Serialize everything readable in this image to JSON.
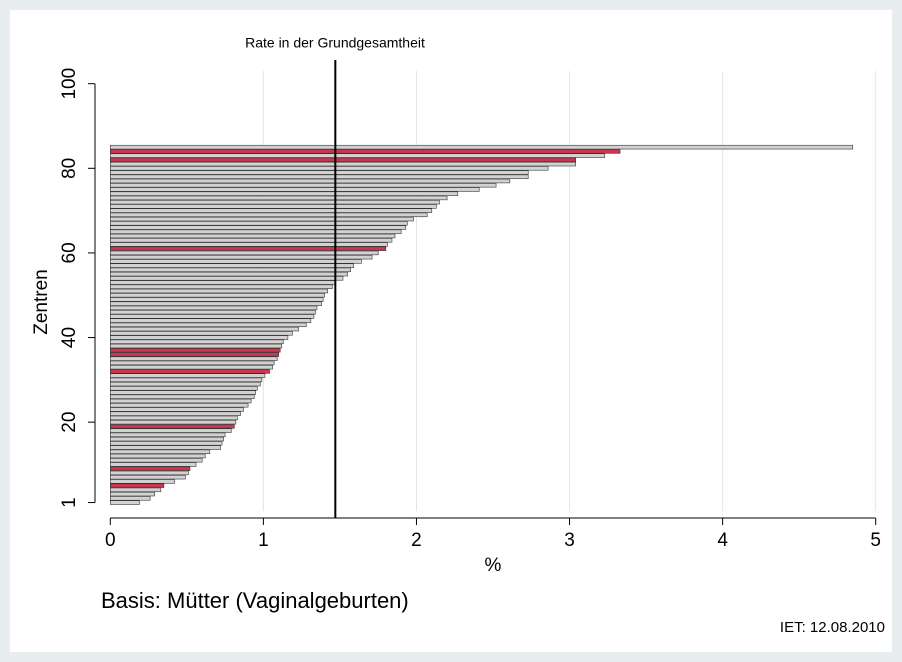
{
  "chart_data": {
    "type": "hbar",
    "reference_line": {
      "value": 1.47,
      "label": "Rate in der Grundgesamtheit"
    },
    "x_label": "%",
    "y_label": "Zentren",
    "note": "Basis: Mütter (Vaginalgeburten)",
    "footer": "IET: 12.08.2010",
    "x": [
      1,
      2,
      3,
      4,
      5,
      6,
      7,
      8,
      9,
      10,
      11,
      12,
      13,
      14,
      15,
      16,
      17,
      18,
      19,
      20,
      21,
      22,
      23,
      24,
      25,
      26,
      27,
      28,
      29,
      30,
      31,
      32,
      33,
      34,
      35,
      36,
      37,
      38,
      39,
      40,
      41,
      42,
      43,
      44,
      45,
      46,
      47,
      48,
      49,
      50,
      51,
      52,
      53,
      54,
      55,
      56,
      57,
      58,
      59,
      60,
      61,
      62,
      63,
      64,
      65,
      66,
      67,
      68,
      69,
      70,
      71,
      72,
      73,
      74,
      75,
      76,
      77,
      78,
      79,
      80,
      81,
      82,
      83,
      84,
      85
    ],
    "values": [
      0.19,
      0.26,
      0.29,
      0.33,
      0.35,
      0.42,
      0.49,
      0.51,
      0.52,
      0.56,
      0.6,
      0.62,
      0.65,
      0.72,
      0.73,
      0.74,
      0.75,
      0.79,
      0.81,
      0.82,
      0.83,
      0.85,
      0.87,
      0.9,
      0.92,
      0.94,
      0.95,
      0.96,
      0.98,
      0.99,
      1.01,
      1.04,
      1.06,
      1.07,
      1.09,
      1.1,
      1.11,
      1.12,
      1.13,
      1.16,
      1.19,
      1.23,
      1.28,
      1.31,
      1.33,
      1.34,
      1.35,
      1.38,
      1.39,
      1.4,
      1.42,
      1.45,
      1.47,
      1.52,
      1.55,
      1.57,
      1.59,
      1.64,
      1.71,
      1.75,
      1.8,
      1.81,
      1.84,
      1.86,
      1.9,
      1.93,
      1.94,
      1.98,
      2.07,
      2.1,
      2.13,
      2.15,
      2.2,
      2.27,
      2.41,
      2.52,
      2.61,
      2.73,
      2.73,
      2.86,
      3.04,
      3.04,
      3.23,
      3.33,
      4.85
    ],
    "colors": [
      "#d2d2d2",
      "#d2d2d2",
      "#d2d2d2",
      "#d2d2d2",
      "#c8374f",
      "#d2d2d2",
      "#d2d2d2",
      "#d2d2d2",
      "#c8374f",
      "#d2d2d2",
      "#d2d2d2",
      "#d2d2d2",
      "#d2d2d2",
      "#d2d2d2",
      "#d2d2d2",
      "#d2d2d2",
      "#d2d2d2",
      "#d2d2d2",
      "#c8374f",
      "#d2d2d2",
      "#d2d2d2",
      "#d2d2d2",
      "#d2d2d2",
      "#d2d2d2",
      "#d2d2d2",
      "#d2d2d2",
      "#d2d2d2",
      "#d2d2d2",
      "#d2d2d2",
      "#d2d2d2",
      "#d2d2d2",
      "#c8374f",
      "#d2d2d2",
      "#d2d2d2",
      "#d2d2d2",
      "#c8374f",
      "#c8374f",
      "#d2d2d2",
      "#d2d2d2",
      "#d2d2d2",
      "#d2d2d2",
      "#d2d2d2",
      "#d2d2d2",
      "#d2d2d2",
      "#d2d2d2",
      "#d2d2d2",
      "#d2d2d2",
      "#d2d2d2",
      "#d2d2d2",
      "#d2d2d2",
      "#d2d2d2",
      "#d2d2d2",
      "#d2d2d2",
      "#d2d2d2",
      "#d2d2d2",
      "#d2d2d2",
      "#d2d2d2",
      "#d2d2d2",
      "#d2d2d2",
      "#d2d2d2",
      "#c8374f",
      "#d2d2d2",
      "#d2d2d2",
      "#d2d2d2",
      "#d2d2d2",
      "#d2d2d2",
      "#d2d2d2",
      "#d2d2d2",
      "#d2d2d2",
      "#d2d2d2",
      "#d2d2d2",
      "#d2d2d2",
      "#d2d2d2",
      "#d2d2d2",
      "#d2d2d2",
      "#d2d2d2",
      "#d2d2d2",
      "#d2d2d2",
      "#d2d2d2",
      "#d2d2d2",
      "#d2d2d2",
      "#c8374f",
      "#d2d2d2",
      "#c8374f",
      "#d2d2d2"
    ],
    "xlim": [
      -0.1,
      5.1
    ],
    "xticks": [
      0,
      1,
      2,
      3,
      4,
      5
    ],
    "ylim": [
      -1,
      103
    ],
    "yticks": [
      1,
      20,
      40,
      60,
      80,
      100
    ],
    "grid": true
  }
}
